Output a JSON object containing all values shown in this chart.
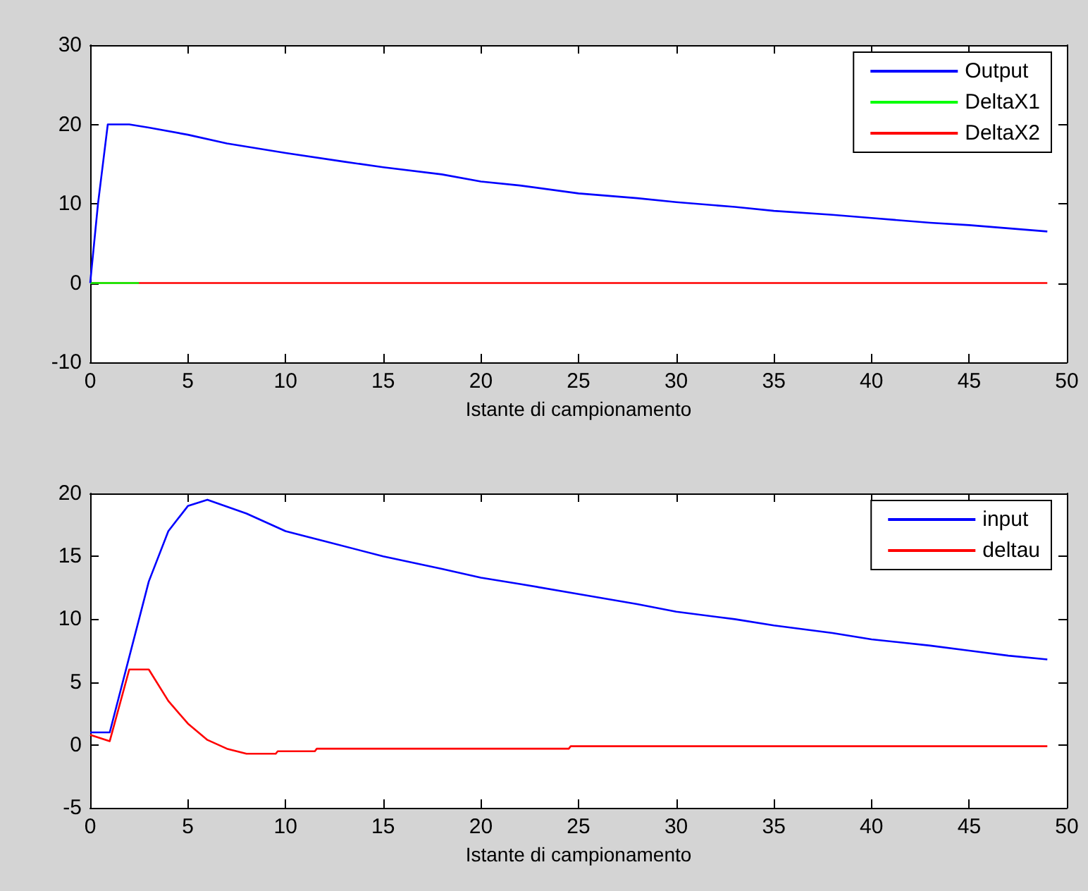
{
  "chart_data": [
    {
      "type": "line",
      "xlabel": "Istante di campionamento",
      "xlim": [
        0,
        50
      ],
      "xticks": [
        0,
        5,
        10,
        15,
        20,
        25,
        30,
        35,
        40,
        45,
        50
      ],
      "ylim": [
        -10,
        30
      ],
      "yticks": [
        -10,
        0,
        10,
        20,
        30
      ],
      "grid": false,
      "legend": "top right",
      "marker": "none",
      "line_style": "solid",
      "series": [
        {
          "name": "Output",
          "color": "#0000ff",
          "x": [
            0,
            0.4,
            0.9,
            2,
            3,
            5,
            7,
            10,
            13,
            15,
            18,
            20,
            22,
            25,
            28,
            30,
            33,
            35,
            38,
            40,
            43,
            45,
            47,
            49
          ],
          "values": [
            0,
            10,
            20,
            20,
            19.6,
            18.7,
            17.6,
            16.4,
            15.3,
            14.6,
            13.7,
            12.8,
            12.3,
            11.3,
            10.7,
            10.2,
            9.6,
            9.1,
            8.6,
            8.2,
            7.6,
            7.3,
            6.9,
            6.5
          ]
        },
        {
          "name": "DeltaX1",
          "color": "#00ff00",
          "x": [
            0,
            2.5
          ],
          "values": [
            0,
            0
          ]
        },
        {
          "name": "DeltaX2",
          "color": "#ff0000",
          "x": [
            0,
            49
          ],
          "values": [
            0,
            0
          ]
        }
      ]
    },
    {
      "type": "line",
      "xlabel": "Istante di campionamento",
      "xlim": [
        0,
        50
      ],
      "xticks": [
        0,
        5,
        10,
        15,
        20,
        25,
        30,
        35,
        40,
        45,
        50
      ],
      "ylim": [
        -5,
        20
      ],
      "yticks": [
        -5,
        0,
        5,
        10,
        15,
        20
      ],
      "grid": false,
      "legend": "top right",
      "marker": "none",
      "line_style": "solid",
      "series": [
        {
          "name": "input",
          "color": "#0000ff",
          "x": [
            0,
            1,
            2,
            3,
            4,
            5,
            6,
            8,
            10,
            12,
            15,
            18,
            20,
            22,
            25,
            28,
            30,
            33,
            35,
            38,
            40,
            43,
            45,
            47,
            49
          ],
          "values": [
            1,
            1,
            7,
            13,
            17,
            19,
            19.5,
            18.4,
            17,
            16.2,
            15,
            14,
            13.3,
            12.8,
            12,
            11.2,
            10.6,
            10,
            9.5,
            8.9,
            8.4,
            7.9,
            7.5,
            7.1,
            6.8
          ]
        },
        {
          "name": "deltau",
          "color": "#ff0000",
          "x": [
            0,
            1,
            2,
            3,
            4,
            5,
            6,
            7,
            8,
            9.5,
            9.6,
            11.5,
            11.6,
            24.5,
            24.6,
            49
          ],
          "values": [
            0.8,
            0.3,
            6,
            6,
            3.5,
            1.7,
            0.4,
            -0.3,
            -0.7,
            -0.7,
            -0.5,
            -0.5,
            -0.3,
            -0.3,
            -0.1,
            -0.1
          ]
        }
      ]
    }
  ]
}
